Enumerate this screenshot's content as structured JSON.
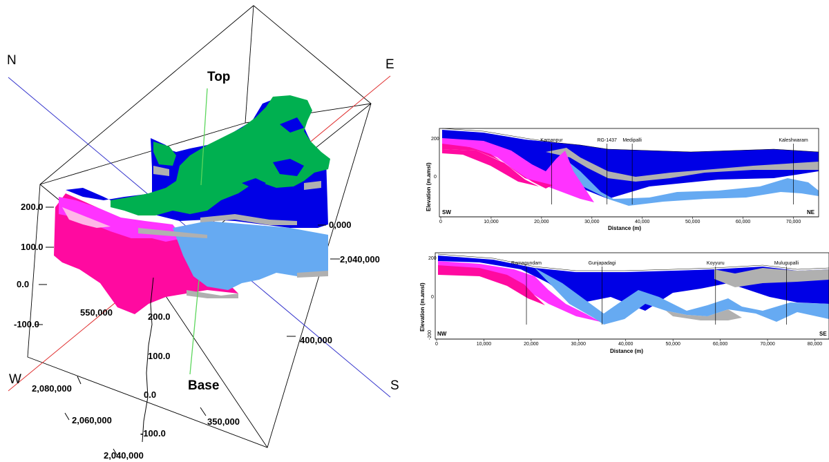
{
  "block3d": {
    "directions": {
      "north": "N",
      "east": "E",
      "south": "S",
      "west": "W"
    },
    "markers": {
      "top": "Top",
      "base": "Base"
    },
    "elevation_left": [
      "200.0",
      "100.0",
      "0.0",
      "-100.0"
    ],
    "elevation_front": [
      "200.0",
      "100.0",
      "0.0",
      "-100.0"
    ],
    "easting_front": [
      "550,000",
      "400,000",
      "350,000"
    ],
    "easting_partial": "0,000",
    "northing": [
      "2,080,000",
      "2,060,000",
      "2,040,000",
      "2,040,000"
    ],
    "colors": {
      "green": "#00b050",
      "blue": "#0000e6",
      "light_blue": "#66aaf2",
      "grey": "#b0b0b0",
      "pink": "#ff0aa0",
      "magenta": "#ff33ff",
      "axis_n": "#3333cc",
      "axis_e": "#e03030"
    }
  },
  "sections": [
    {
      "ylabel": "Elevation (m.amsl)",
      "xlabel": "Distance (m)",
      "start": "SW",
      "end": "NE",
      "x_ticks": [
        "0",
        "10,000",
        "20,000",
        "30,000",
        "40,000",
        "50,000",
        "60,000",
        "70,000"
      ],
      "x_max": 75000,
      "y_ticks": [
        "200",
        "0"
      ],
      "wells": [
        {
          "name": "Kamanpur",
          "x": 22000
        },
        {
          "name": "RG-1437",
          "x": 33000
        },
        {
          "name": "Medipalli",
          "x": 38000
        },
        {
          "name": "Kaleshwaram",
          "x": 70000
        }
      ]
    },
    {
      "ylabel": "Elevation (m.amsl)",
      "xlabel": "Distance (m)",
      "start": "NW",
      "end": "SE",
      "x_ticks": [
        "0",
        "10,000",
        "20,000",
        "30,000",
        "40,000",
        "50,000",
        "60,000",
        "70,000",
        "80,000"
      ],
      "x_max": 83000,
      "y_ticks": [
        "200",
        "0",
        "-200"
      ],
      "wells": [
        {
          "name": "Ramagundam",
          "x": 19000
        },
        {
          "name": "Gunjapadagi",
          "x": 35000
        },
        {
          "name": "Koyyuru",
          "x": 59000
        },
        {
          "name": "Mulugupalli",
          "x": 74000
        }
      ]
    }
  ]
}
